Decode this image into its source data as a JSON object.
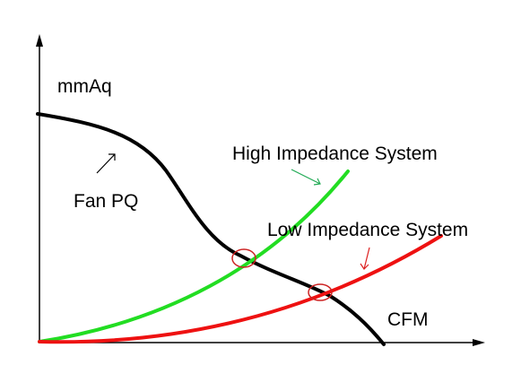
{
  "labels": {
    "y_axis": "mmAq",
    "x_axis": "CFM",
    "fan_curve": "Fan PQ",
    "high_system": "High Impedance System",
    "low_system": "Low Impedance System"
  },
  "colors": {
    "background": "#ffffff",
    "axis": "#000000",
    "fan_curve": "#000000",
    "high_system": "#22dd22",
    "low_system": "#ee1111",
    "operating_point_marker": "#cc2222"
  }
}
